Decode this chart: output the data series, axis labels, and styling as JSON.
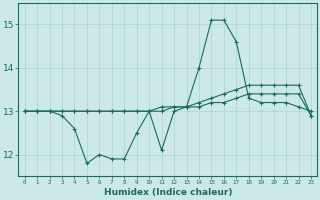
{
  "xlabel": "Humidex (Indice chaleur)",
  "x": [
    0,
    1,
    2,
    3,
    4,
    5,
    6,
    7,
    8,
    9,
    10,
    11,
    12,
    13,
    14,
    15,
    16,
    17,
    18,
    19,
    20,
    21,
    22,
    23
  ],
  "line1": [
    13.0,
    13.0,
    13.0,
    12.9,
    12.6,
    11.8,
    12.0,
    11.9,
    11.9,
    12.5,
    13.0,
    12.1,
    13.0,
    13.1,
    14.0,
    15.1,
    15.1,
    14.6,
    13.3,
    13.2,
    13.2,
    13.2,
    13.1,
    13.0
  ],
  "line2": [
    13.0,
    13.0,
    13.0,
    13.0,
    13.0,
    13.0,
    13.0,
    13.0,
    13.0,
    13.0,
    13.0,
    13.1,
    13.1,
    13.1,
    13.2,
    13.3,
    13.4,
    13.5,
    13.6,
    13.6,
    13.6,
    13.6,
    13.6,
    12.9
  ],
  "line3": [
    13.0,
    13.0,
    13.0,
    13.0,
    13.0,
    13.0,
    13.0,
    13.0,
    13.0,
    13.0,
    13.0,
    13.0,
    13.1,
    13.1,
    13.1,
    13.2,
    13.2,
    13.3,
    13.4,
    13.4,
    13.4,
    13.4,
    13.4,
    12.9
  ],
  "line_color": "#1a6b5a",
  "bg_color": "#cce8e8",
  "grid_color": "#aad4d4",
  "ylim": [
    11.5,
    15.5
  ],
  "yticks": [
    12,
    13,
    14,
    15
  ],
  "xticks": [
    0,
    1,
    2,
    3,
    4,
    5,
    6,
    7,
    8,
    9,
    10,
    11,
    12,
    13,
    14,
    15,
    16,
    17,
    18,
    19,
    20,
    21,
    22,
    23
  ]
}
